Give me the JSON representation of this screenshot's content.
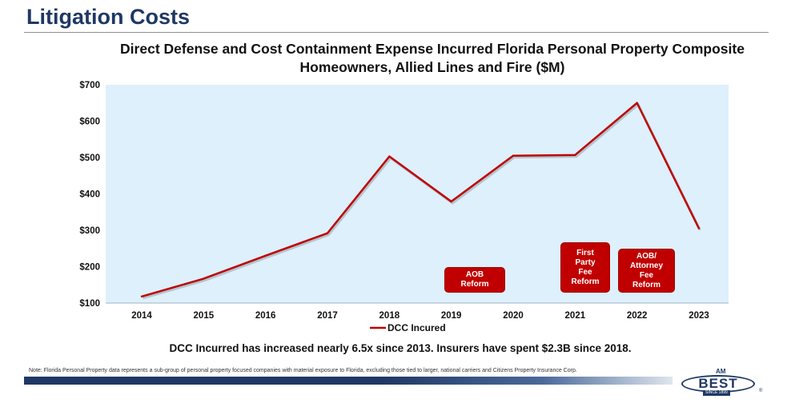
{
  "slide": {
    "title": "Litigation Costs",
    "takeaway": "DCC Incurred has increased nearly 6.5x since 2013. Insurers have spent $2.3B since 2018.",
    "note": "Note: Florida Personal Property data represents a sub-group of personal property focused companies with material exposure to Florida, excluding those tied to larger, national carriers and Citizens Property Insurance Corp."
  },
  "chart_data": {
    "type": "line",
    "title_line1": "Direct Defense and Cost Containment Expense Incurred Florida Personal Property Composite",
    "title_line2": "Homeowners, Allied Lines and Fire ($M)",
    "categories": [
      "2014",
      "2015",
      "2016",
      "2017",
      "2018",
      "2019",
      "2020",
      "2021",
      "2022",
      "2023"
    ],
    "series": [
      {
        "name": "DCC Incured",
        "color": "#c00000",
        "values": [
          118,
          167,
          230,
          292,
          503,
          379,
          505,
          507,
          650,
          305
        ]
      }
    ],
    "ylim": [
      100,
      700
    ],
    "yticks": [
      100,
      200,
      300,
      400,
      500,
      600,
      700
    ],
    "ytick_labels": [
      "$100",
      "$200",
      "$300",
      "$400",
      "$500",
      "$600",
      "$700"
    ],
    "grid": false,
    "legend": "bottom",
    "plot_background": "#ddf0fb",
    "annotations": [
      {
        "year": "2019",
        "text": "AOB Reform"
      },
      {
        "year": "2021",
        "text": "First Party Fee Reform"
      },
      {
        "year": "2022",
        "text": "AOB/ Attorney Fee Reform"
      }
    ]
  },
  "logo": {
    "am": "AM",
    "best": "BEST",
    "since": "SINCE 1899",
    "reg": "®"
  },
  "colors": {
    "title": "#1f3864",
    "accent": "#c00000"
  }
}
